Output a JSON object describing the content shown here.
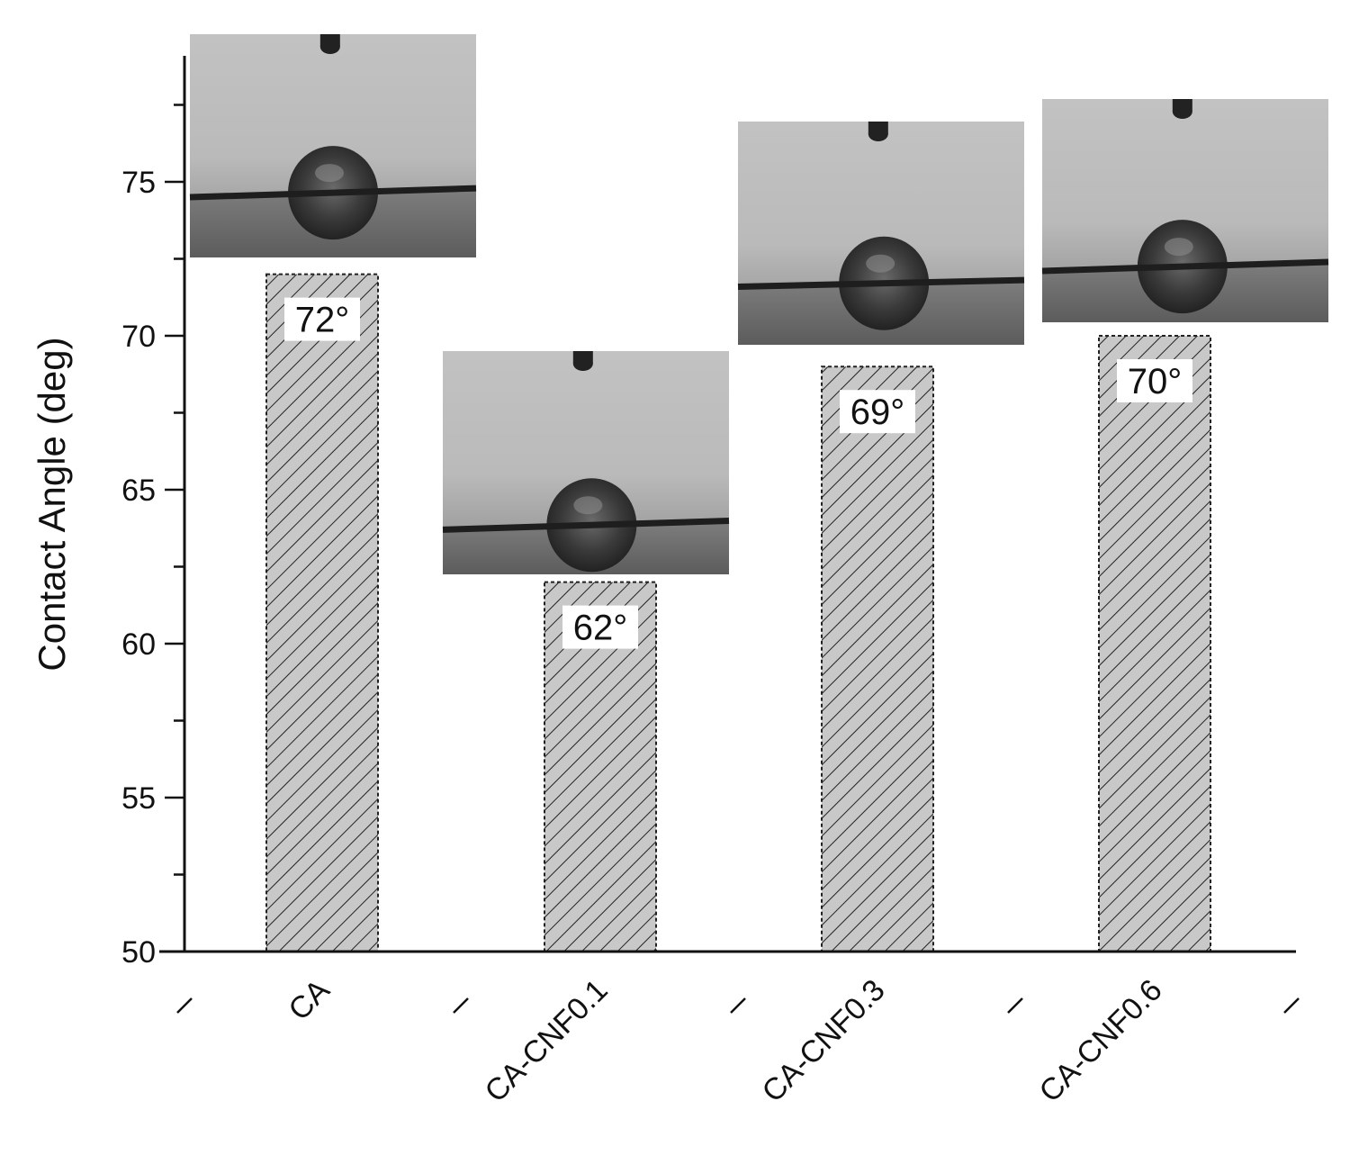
{
  "chart_data": {
    "type": "bar",
    "categories": [
      "CA",
      "CA-CNF0.1",
      "CA-CNF0.3",
      "CA-CNF0.6"
    ],
    "values": [
      72,
      62,
      69,
      70
    ],
    "data_labels": [
      "72°",
      "62°",
      "69°",
      "70°"
    ],
    "title": "",
    "xlabel": "",
    "ylabel": "Contact Angle (deg)",
    "ylim": [
      50,
      79
    ],
    "yticks": [
      50,
      55,
      60,
      65,
      70,
      75
    ],
    "bar_fill": "#c8c8c8",
    "bar_hatch": "diagonal",
    "insets": "droplet photograph above each bar",
    "grid": false
  }
}
